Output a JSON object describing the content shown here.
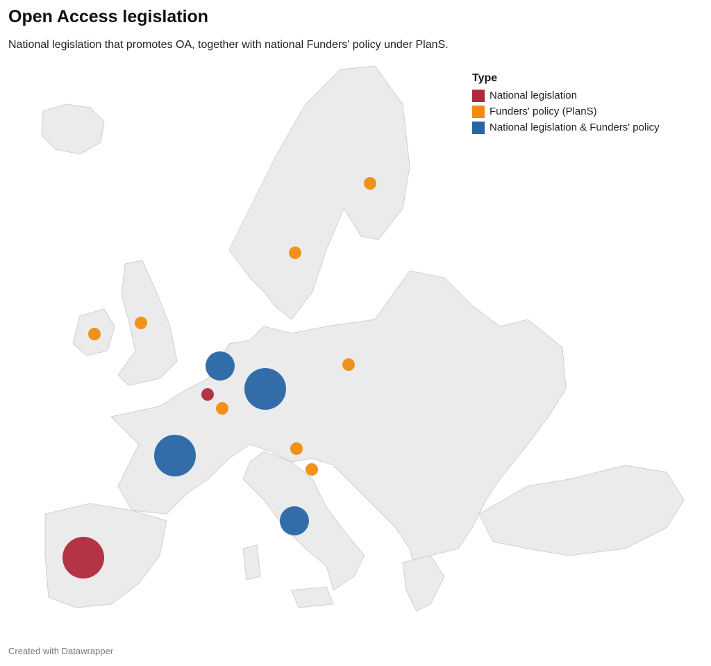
{
  "header": {
    "title": "Open Access legislation",
    "subtitle": "National legislation that promotes OA, together with national Funders' policy under PlanS."
  },
  "legend": {
    "title": "Type",
    "items": [
      {
        "name": "National legislation",
        "color": "#b02a3b"
      },
      {
        "name": "Funders' policy (PlanS)",
        "color": "#f08c10"
      },
      {
        "name": "National legislation & Funders' policy",
        "color": "#2866a6"
      }
    ]
  },
  "footer": "Created with Datawrapper"
}
